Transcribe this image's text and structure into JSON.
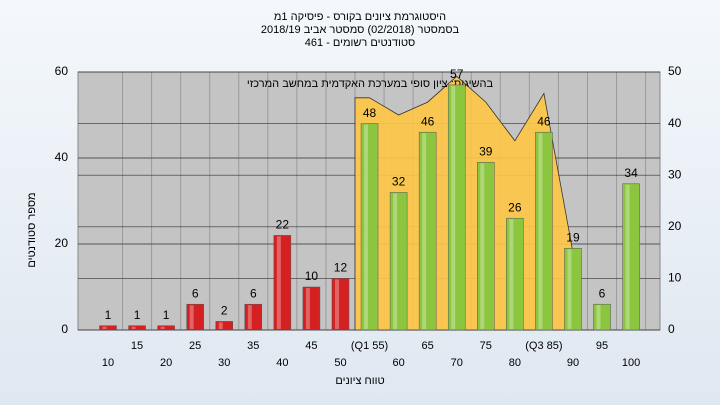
{
  "chart_data": {
    "type": "bar",
    "title": [
      "היסטוגרמת ציונים בקורס - פיסיקה 1מ",
      "בסמסטר  (02/2018)  סמסטר אביב 2018/19",
      "סטודנטים רשומים - 461"
    ],
    "annotation": "בהשיגות: ציון סופי במערכת האקדמית במחשב המרכזי",
    "x_label": "טווח ציונים",
    "y_label": "מספר סטודנטים",
    "categories": [
      "10",
      "15",
      "20",
      "25",
      "30",
      "35",
      "40",
      "45",
      "50",
      "(Q1 55)",
      "60",
      "65",
      "70",
      "75",
      "80",
      "(Q3 85)",
      "90",
      "95",
      "100"
    ],
    "values": [
      1,
      1,
      1,
      6,
      2,
      6,
      22,
      10,
      12,
      48,
      32,
      46,
      57,
      39,
      26,
      46,
      19,
      6,
      34
    ],
    "colors": [
      "#d42020",
      "#d42020",
      "#d42020",
      "#d42020",
      "#d42020",
      "#d42020",
      "#d42020",
      "#d42020",
      "#d42020",
      "#8cc63f",
      "#8cc63f",
      "#8cc63f",
      "#8cc63f",
      "#8cc63f",
      "#8cc63f",
      "#8cc63f",
      "#8cc63f",
      "#8cc63f",
      "#8cc63f"
    ],
    "area_values": [
      null,
      null,
      null,
      null,
      null,
      null,
      null,
      null,
      null,
      54,
      50,
      53,
      59,
      53,
      44,
      55,
      18,
      null,
      null
    ],
    "area_color": "#ffc845",
    "ylim": [
      0,
      60
    ],
    "yticks": [
      0,
      20,
      40,
      60
    ],
    "y2lim": [
      0,
      50
    ],
    "y2ticks": [
      0,
      10,
      20,
      30,
      40,
      50
    ],
    "grid": true
  }
}
